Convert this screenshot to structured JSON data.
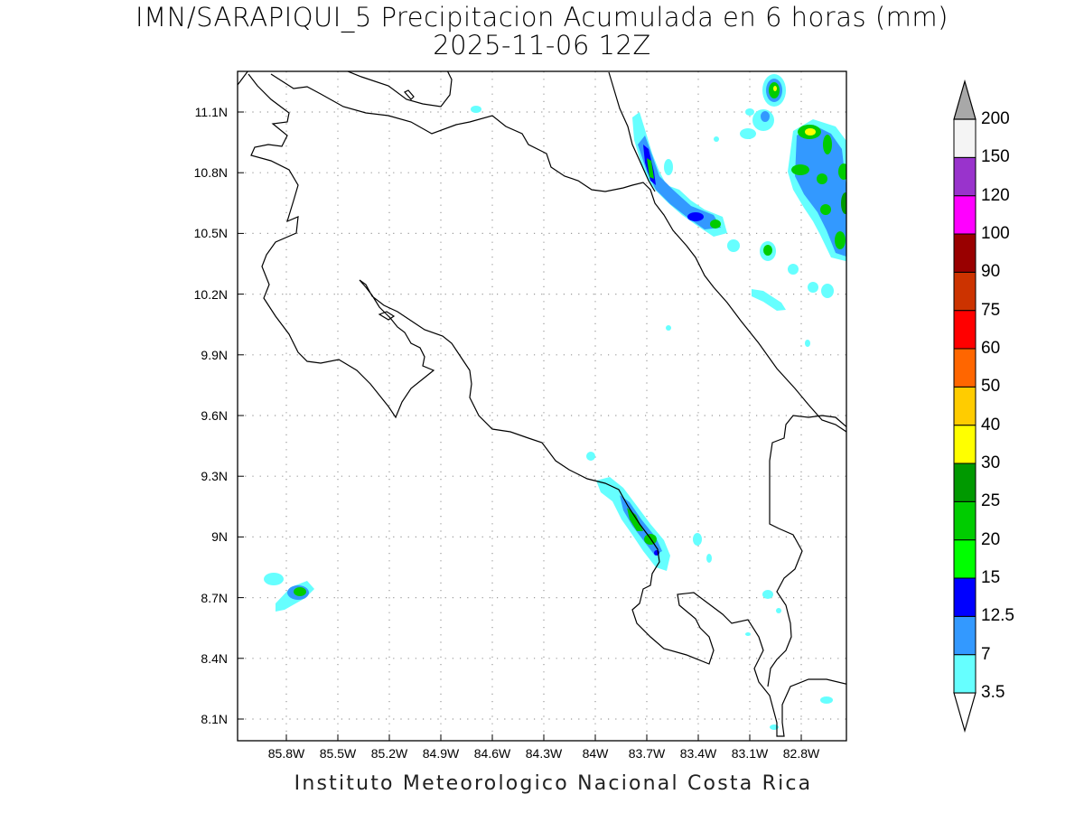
{
  "title": {
    "line1": "IMN/SARAPIQUI_5 Precipitacion Acumulada en 6 horas (mm)",
    "line2": "2025-11-06 12Z"
  },
  "footer": "Instituto Meteorologico Nacional Costa Rica",
  "map": {
    "lon_range": [
      -86.0,
      -83.6
    ],
    "lat_range": [
      8.0,
      11.3
    ],
    "grid": "dotted",
    "x_ticks": [
      {
        "lon": -85.8,
        "label": "85.8W"
      },
      {
        "lon": -85.5,
        "label": "85.5W"
      },
      {
        "lon": -85.2,
        "label": "85.2W"
      },
      {
        "lon": -84.9,
        "label": "84.9W"
      },
      {
        "lon": -84.6,
        "label": "84.6W"
      },
      {
        "lon": -84.3,
        "label": "84.3W"
      },
      {
        "lon": -84.0,
        "label": "84W"
      },
      {
        "lon": -83.7,
        "label": "83.7W"
      },
      {
        "lon": -83.4,
        "label": "83.4W"
      },
      {
        "lon": -83.1,
        "label": "83.1W"
      },
      {
        "lon": -82.8,
        "label": "82.8W"
      }
    ],
    "y_ticks": [
      {
        "lat": 11.1,
        "label": "11.1N"
      },
      {
        "lat": 10.8,
        "label": "10.8N"
      },
      {
        "lat": 10.5,
        "label": "10.5N"
      },
      {
        "lat": 10.2,
        "label": "10.2N"
      },
      {
        "lat": 9.9,
        "label": "9.9N"
      },
      {
        "lat": 9.6,
        "label": "9.6N"
      },
      {
        "lat": 9.3,
        "label": "9.3N"
      },
      {
        "lat": 9.0,
        "label": "9N"
      },
      {
        "lat": 8.7,
        "label": "8.7N"
      },
      {
        "lat": 8.4,
        "label": "8.4N"
      },
      {
        "lat": 8.1,
        "label": "8.1N"
      }
    ]
  },
  "colorbar": {
    "labels": [
      "3.5",
      "7",
      "12.5",
      "15",
      "20",
      "25",
      "30",
      "40",
      "50",
      "60",
      "75",
      "90",
      "100",
      "120",
      "150",
      "200"
    ],
    "colors": [
      "#66ffff",
      "#3399ff",
      "#0000ff",
      "#00ff00",
      "#00cc00",
      "#009900",
      "#ffff00",
      "#ffcc00",
      "#ff6600",
      "#ff0000",
      "#cc3300",
      "#990000",
      "#ff00ff",
      "#9933cc",
      "#f4f4f4",
      "#a8a8a8"
    ]
  }
}
